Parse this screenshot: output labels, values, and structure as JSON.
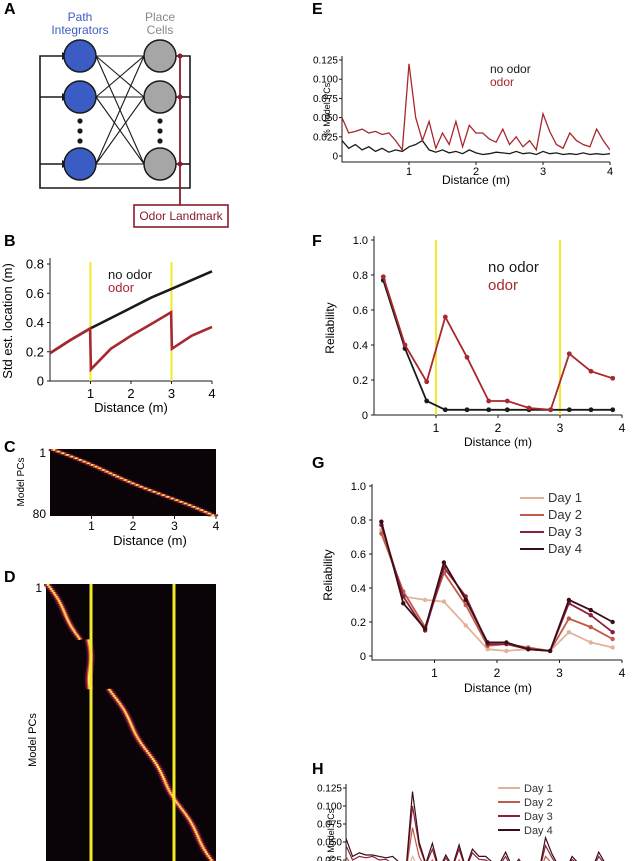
{
  "panels": {
    "A": {
      "letter": "A",
      "label_integrators_1": "Path",
      "label_integrators_2": "Integrators",
      "label_place_1": "Place",
      "label_place_2": "Cells",
      "odor_box": "Odor Landmark"
    },
    "B": {
      "letter": "B"
    },
    "C": {
      "letter": "C"
    },
    "D": {
      "letter": "D"
    },
    "E": {
      "letter": "E"
    },
    "F": {
      "letter": "F"
    },
    "G": {
      "letter": "G"
    },
    "H": {
      "letter": "H"
    }
  },
  "colors": {
    "black": "#1a1a1a",
    "odor": "#a8282e",
    "landmark": "#f2ea2a",
    "integrator": "#3b5cc4",
    "place": "#a6a6a6",
    "odor_box": "#8a1c2c",
    "day1": "#e0b49a",
    "day2": "#c25a48",
    "day3": "#8e1f3a",
    "day4": "#3a0e18"
  },
  "chart_data": [
    {
      "id": "B",
      "type": "line",
      "xlabel": "Distance (m)",
      "ylabel": "Std est. location (m)",
      "xlim": [
        0,
        4
      ],
      "ylim": [
        0,
        0.8
      ],
      "xticks": [
        "1",
        "2",
        "3",
        "4"
      ],
      "yticks": [
        "0",
        "0.2",
        "0.4",
        "0.6",
        "0.8"
      ],
      "landmarks": [
        1,
        3
      ],
      "legend": [
        "no odor",
        "odor"
      ],
      "series": [
        {
          "name": "no odor",
          "x": [
            0,
            0.5,
            1,
            1.5,
            2,
            2.5,
            3,
            3.5,
            4
          ],
          "y": [
            0.19,
            0.28,
            0.36,
            0.43,
            0.5,
            0.57,
            0.63,
            0.69,
            0.75
          ]
        },
        {
          "name": "odor",
          "x": [
            0,
            0.5,
            0.99,
            1.01,
            1.5,
            2,
            2.5,
            2.99,
            3.01,
            3.5,
            4
          ],
          "y": [
            0.19,
            0.28,
            0.36,
            0.08,
            0.22,
            0.31,
            0.39,
            0.47,
            0.22,
            0.31,
            0.37
          ]
        }
      ]
    },
    {
      "id": "C",
      "type": "heatmap",
      "xlabel": "Distance (m)",
      "ylabel": "Model PCs",
      "xticks": [
        "1",
        "2",
        "3",
        "4"
      ],
      "yticks": [
        "1",
        "80"
      ]
    },
    {
      "id": "D",
      "type": "heatmap",
      "ylabel": "Model PCs",
      "yticks": [
        "1"
      ],
      "landmarks": [
        1,
        3
      ]
    },
    {
      "id": "E",
      "type": "line",
      "xlabel": "Distance (m)",
      "ylabel": "% Model PCs",
      "xlim": [
        0,
        4
      ],
      "ylim": [
        0,
        0.125
      ],
      "xticks": [
        "1",
        "2",
        "3",
        "4"
      ],
      "yticks": [
        "0",
        "0.025",
        "0.050",
        "0.075",
        "0.100",
        "0.125"
      ],
      "legend": [
        "no odor",
        "odor"
      ],
      "series": [
        {
          "name": "no odor",
          "y": [
            0.02,
            0.01,
            0.015,
            0.008,
            0.012,
            0.006,
            0.01,
            0.005,
            0.008,
            0.006,
            0.012,
            0.015,
            0.02,
            0.008,
            0.005,
            0.008,
            0.004,
            0.006,
            0.003,
            0.008,
            0.004,
            0.002,
            0.003,
            0.005,
            0.004,
            0.003,
            0.006,
            0.003,
            0.004,
            0.002,
            0.006,
            0.003,
            0.004,
            0.002,
            0.003,
            0.002,
            0.004,
            0.002,
            0.003,
            0.002,
            0.003
          ]
        },
        {
          "name": "odor",
          "y": [
            0.05,
            0.03,
            0.032,
            0.035,
            0.03,
            0.032,
            0.028,
            0.03,
            0.02,
            0.008,
            0.12,
            0.05,
            0.02,
            0.045,
            0.01,
            0.03,
            0.015,
            0.045,
            0.012,
            0.04,
            0.03,
            0.03,
            0.022,
            0.018,
            0.035,
            0.015,
            0.025,
            0.012,
            0.02,
            0.008,
            0.055,
            0.032,
            0.015,
            0.01,
            0.03,
            0.02,
            0.015,
            0.012,
            0.035,
            0.02,
            0.008
          ]
        }
      ]
    },
    {
      "id": "F",
      "type": "line",
      "xlabel": "Distance (m)",
      "ylabel": "Reliability",
      "xlim": [
        0,
        4
      ],
      "ylim": [
        0,
        1.0
      ],
      "xticks": [
        "1",
        "2",
        "3",
        "4"
      ],
      "yticks": [
        "0",
        "0.2",
        "0.4",
        "0.6",
        "0.8",
        "1.0"
      ],
      "landmarks": [
        1,
        3
      ],
      "legend": [
        "no odor",
        "odor"
      ],
      "series": [
        {
          "name": "no odor",
          "x": [
            0.15,
            0.5,
            0.85,
            1.15,
            1.5,
            1.85,
            2.15,
            2.5,
            2.85,
            3.15,
            3.5,
            3.85
          ],
          "y": [
            0.77,
            0.38,
            0.08,
            0.03,
            0.03,
            0.03,
            0.03,
            0.03,
            0.03,
            0.03,
            0.03,
            0.03
          ]
        },
        {
          "name": "odor",
          "x": [
            0.15,
            0.5,
            0.85,
            1.15,
            1.5,
            1.85,
            2.15,
            2.5,
            2.85,
            3.15,
            3.5,
            3.85
          ],
          "y": [
            0.79,
            0.4,
            0.19,
            0.56,
            0.33,
            0.08,
            0.08,
            0.04,
            0.03,
            0.35,
            0.25,
            0.21
          ]
        }
      ]
    },
    {
      "id": "G",
      "type": "line",
      "xlabel": "Distance (m)",
      "ylabel": "Reliability",
      "xlim": [
        0,
        4
      ],
      "ylim": [
        0,
        1.0
      ],
      "xticks": [
        "1",
        "2",
        "3",
        "4"
      ],
      "yticks": [
        "0",
        "0.2",
        "0.4",
        "0.6",
        "0.8",
        "1.0"
      ],
      "legend": [
        "Day 1",
        "Day 2",
        "Day 3",
        "Day 4"
      ],
      "x": [
        0.15,
        0.5,
        0.85,
        1.15,
        1.5,
        1.85,
        2.15,
        2.5,
        2.85,
        3.15,
        3.5,
        3.85
      ],
      "series": [
        {
          "name": "Day 1",
          "y": [
            0.74,
            0.35,
            0.33,
            0.32,
            0.18,
            0.04,
            0.03,
            0.04,
            0.03,
            0.14,
            0.08,
            0.05
          ]
        },
        {
          "name": "Day 2",
          "y": [
            0.72,
            0.38,
            0.17,
            0.49,
            0.3,
            0.06,
            0.07,
            0.05,
            0.03,
            0.22,
            0.17,
            0.1
          ]
        },
        {
          "name": "Day 3",
          "y": [
            0.77,
            0.35,
            0.15,
            0.52,
            0.35,
            0.07,
            0.07,
            0.04,
            0.03,
            0.31,
            0.24,
            0.14
          ]
        },
        {
          "name": "Day 4",
          "y": [
            0.79,
            0.31,
            0.16,
            0.55,
            0.33,
            0.08,
            0.08,
            0.04,
            0.03,
            0.33,
            0.27,
            0.2
          ]
        }
      ]
    },
    {
      "id": "H",
      "type": "line",
      "ylabel": "% Model PCs",
      "ylim": [
        0,
        0.125
      ],
      "yticks": [
        "0.025",
        "0.050",
        "0.075",
        "0.100",
        "0.125"
      ],
      "legend": [
        "Day 1",
        "Day 2",
        "Day 3",
        "Day 4"
      ],
      "series": [
        {
          "name": "Day 1",
          "y": [
            0.015,
            0.008,
            0.012,
            0.006,
            0.01,
            0.005,
            0.008,
            0.004,
            0.01,
            0.006,
            0.03,
            0.012,
            0.006,
            0.01,
            0.004,
            0.008,
            0.005,
            0.006,
            0.004,
            0.008,
            0.004,
            0.006,
            0.003,
            0.005,
            0.004,
            0.006,
            0.003,
            0.005,
            0.004,
            0.003,
            0.015,
            0.006,
            0.004,
            0.003,
            0.005,
            0.004,
            0.003,
            0.004,
            0.006,
            0.003,
            0.004
          ]
        },
        {
          "name": "Day 2",
          "y": [
            0.03,
            0.015,
            0.02,
            0.018,
            0.022,
            0.015,
            0.018,
            0.012,
            0.016,
            0.008,
            0.07,
            0.03,
            0.012,
            0.025,
            0.008,
            0.02,
            0.01,
            0.025,
            0.008,
            0.022,
            0.018,
            0.015,
            0.012,
            0.01,
            0.02,
            0.008,
            0.014,
            0.006,
            0.012,
            0.005,
            0.03,
            0.02,
            0.01,
            0.006,
            0.018,
            0.012,
            0.01,
            0.008,
            0.02,
            0.012,
            0.006
          ]
        },
        {
          "name": "Day 3",
          "y": [
            0.045,
            0.025,
            0.03,
            0.028,
            0.03,
            0.025,
            0.026,
            0.02,
            0.02,
            0.008,
            0.1,
            0.045,
            0.018,
            0.04,
            0.01,
            0.028,
            0.014,
            0.04,
            0.012,
            0.035,
            0.026,
            0.025,
            0.02,
            0.016,
            0.03,
            0.012,
            0.022,
            0.01,
            0.018,
            0.007,
            0.045,
            0.028,
            0.014,
            0.008,
            0.026,
            0.018,
            0.014,
            0.01,
            0.03,
            0.018,
            0.008
          ]
        },
        {
          "name": "Day 4",
          "y": [
            0.055,
            0.03,
            0.035,
            0.032,
            0.032,
            0.03,
            0.028,
            0.03,
            0.022,
            0.01,
            0.12,
            0.05,
            0.02,
            0.048,
            0.012,
            0.032,
            0.016,
            0.046,
            0.014,
            0.04,
            0.03,
            0.03,
            0.022,
            0.018,
            0.036,
            0.015,
            0.026,
            0.012,
            0.02,
            0.008,
            0.056,
            0.033,
            0.016,
            0.01,
            0.03,
            0.02,
            0.016,
            0.012,
            0.036,
            0.02,
            0.008
          ]
        }
      ]
    }
  ]
}
